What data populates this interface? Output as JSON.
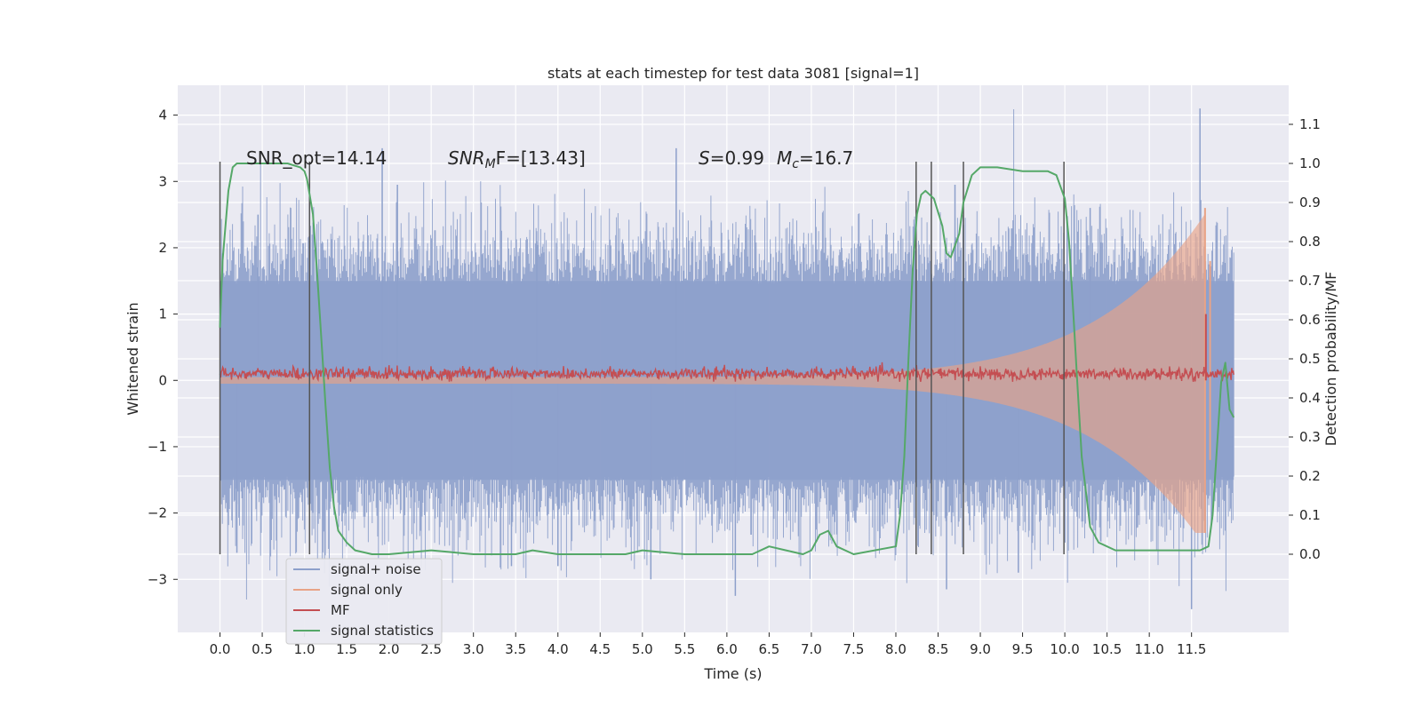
{
  "chart_data": {
    "type": "line",
    "title": "stats at each timestep for test data 3081 [signal=1]",
    "xlabel": "Time (s)",
    "ylabel_left": "Whitened strain",
    "ylabel_right": "Detection probability/MF",
    "xlim": [
      -0.5,
      12.65
    ],
    "ylim_left": [
      -3.8,
      4.45
    ],
    "ylim_right": [
      -0.2,
      1.2
    ],
    "x_ticks": [
      "0.0",
      "0.5",
      "1.0",
      "1.5",
      "2.0",
      "2.5",
      "3.0",
      "3.5",
      "4.0",
      "4.5",
      "5.0",
      "5.5",
      "6.0",
      "6.5",
      "7.0",
      "7.5",
      "8.0",
      "8.5",
      "9.0",
      "9.5",
      "10.0",
      "10.5",
      "11.0",
      "11.5"
    ],
    "y_ticks_left": [
      "−3",
      "−2",
      "−1",
      "0",
      "1",
      "2",
      "3",
      "4"
    ],
    "y_ticks_right": [
      "0.0",
      "0.1",
      "0.2",
      "0.3",
      "0.4",
      "0.5",
      "0.6",
      "0.7",
      "0.8",
      "0.9",
      "1.0",
      "1.1"
    ],
    "grid": true,
    "legend_placement": "lower-left",
    "annotations": {
      "snr_opt": "SNR_opt=14.14",
      "snr_mf_prefix": "SNR",
      "snr_mf_sub": "M",
      "snr_mf_suffix": "F=[13.43]",
      "s_label": "S",
      "s_value": "=0.99",
      "mc_label": "M",
      "mc_sub": "c",
      "mc_value": "=16.7"
    },
    "series": [
      {
        "name": "signal+ noise",
        "color": "#8da0cb",
        "axis": "left",
        "envelope": "noise band about ±1.5 with spikes to ±3.5",
        "x_range": [
          0.0,
          12.0
        ]
      },
      {
        "name": "signal only",
        "color": "#e8a387",
        "axis": "left",
        "envelope": "chirp growing toward merger near 11.65 s, peak ≈ 2.6"
      },
      {
        "name": "MF",
        "color": "#c44e52",
        "axis": "left",
        "envelope": "≈0.0 to 0.25, spike ≈ 1.0 near 11.65 s"
      },
      {
        "name": "signal statistics",
        "color": "#55a868",
        "axis": "right",
        "x": [
          0.0,
          0.03,
          0.1,
          0.15,
          0.2,
          0.3,
          0.5,
          0.8,
          0.95,
          1.0,
          1.03,
          1.1,
          1.15,
          1.2,
          1.25,
          1.3,
          1.35,
          1.4,
          1.5,
          1.6,
          1.8,
          2.0,
          2.5,
          3.0,
          3.5,
          3.7,
          4.0,
          4.5,
          4.8,
          5.0,
          5.5,
          6.0,
          6.3,
          6.5,
          6.7,
          6.9,
          7.0,
          7.1,
          7.2,
          7.3,
          7.5,
          8.0,
          8.05,
          8.1,
          8.15,
          8.2,
          8.25,
          8.3,
          8.35,
          8.45,
          8.55,
          8.6,
          8.65,
          8.75,
          8.8,
          8.9,
          9.0,
          9.2,
          9.5,
          9.8,
          9.9,
          10.0,
          10.05,
          10.1,
          10.15,
          10.2,
          10.3,
          10.4,
          10.6,
          11.0,
          11.5,
          11.6,
          11.7,
          11.75,
          11.85,
          11.9,
          11.95,
          12.0
        ],
        "y": [
          0.58,
          0.75,
          0.93,
          0.99,
          1.0,
          1.0,
          1.0,
          1.0,
          0.99,
          0.98,
          0.96,
          0.87,
          0.72,
          0.55,
          0.38,
          0.22,
          0.12,
          0.06,
          0.03,
          0.01,
          0.0,
          0.0,
          0.01,
          0.0,
          0.0,
          0.01,
          0.0,
          0.0,
          0.0,
          0.01,
          0.0,
          0.0,
          0.0,
          0.02,
          0.01,
          0.0,
          0.01,
          0.05,
          0.06,
          0.02,
          0.0,
          0.02,
          0.1,
          0.25,
          0.5,
          0.73,
          0.87,
          0.92,
          0.93,
          0.91,
          0.84,
          0.77,
          0.76,
          0.82,
          0.9,
          0.97,
          0.99,
          0.99,
          0.98,
          0.98,
          0.97,
          0.91,
          0.8,
          0.62,
          0.43,
          0.25,
          0.07,
          0.03,
          0.01,
          0.01,
          0.01,
          0.01,
          0.02,
          0.1,
          0.44,
          0.49,
          0.37,
          0.35
        ]
      }
    ],
    "vertical_lines": [
      {
        "x": 0.0,
        "y_range_right": [
          0.0,
          1.0
        ]
      },
      {
        "x": 1.06,
        "y_range_right": [
          0.0,
          1.0
        ]
      },
      {
        "x": 8.24,
        "y_range_right": [
          0.0,
          1.0
        ]
      },
      {
        "x": 8.42,
        "y_range_right": [
          0.0,
          1.0
        ]
      },
      {
        "x": 8.8,
        "y_range_right": [
          0.0,
          1.0
        ]
      },
      {
        "x": 9.99,
        "y_range_right": [
          0.0,
          1.0
        ]
      }
    ],
    "colors": {
      "plot_background": "#eaeaf2",
      "grid": "#ffffff",
      "vlines": "#555555",
      "text": "#262626"
    }
  }
}
